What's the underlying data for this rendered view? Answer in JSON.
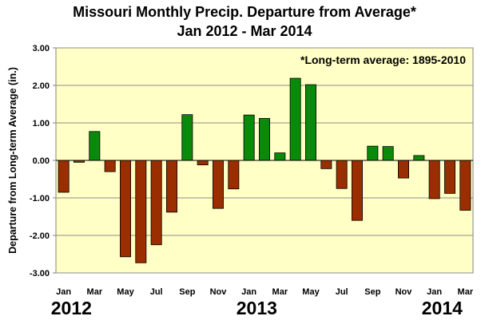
{
  "chart_data": {
    "type": "bar",
    "title": "Missouri Monthly Precip. Departure from Average*",
    "subtitle": "Jan 2012 - Mar 2014",
    "ylabel": "Departure from Long-term Average (in.)",
    "annotation": "*Long-term average: 1895-2010",
    "ylim": [
      -3.0,
      3.0
    ],
    "yticks": [
      "3.00",
      "2.00",
      "1.00",
      "0.00",
      "-1.00",
      "-2.00",
      "-3.00"
    ],
    "ytick_values": [
      3,
      2,
      1,
      0,
      -1,
      -2,
      -3
    ],
    "xtick_labels": [
      "Jan",
      "Mar",
      "May",
      "Jul",
      "Sep",
      "Nov",
      "Jan",
      "Mar",
      "May",
      "Jul",
      "Sep",
      "Nov",
      "Jan",
      "Mar"
    ],
    "xtick_positions": [
      0,
      2,
      4,
      6,
      8,
      10,
      12,
      14,
      16,
      18,
      20,
      22,
      24,
      26
    ],
    "year_labels": [
      "2012",
      "2013",
      "2014"
    ],
    "year_positions": [
      0.5,
      12.5,
      24.5
    ],
    "categories": [
      "Jan 2012",
      "Feb 2012",
      "Mar 2012",
      "Apr 2012",
      "May 2012",
      "Jun 2012",
      "Jul 2012",
      "Aug 2012",
      "Sep 2012",
      "Oct 2012",
      "Nov 2012",
      "Dec 2012",
      "Jan 2013",
      "Feb 2013",
      "Mar 2013",
      "Apr 2013",
      "May 2013",
      "Jun 2013",
      "Jul 2013",
      "Aug 2013",
      "Sep 2013",
      "Oct 2013",
      "Nov 2013",
      "Dec 2013",
      "Jan 2014",
      "Feb 2014",
      "Mar 2014"
    ],
    "values": [
      -0.85,
      -0.05,
      0.77,
      -0.3,
      -2.57,
      -2.73,
      -2.25,
      -1.38,
      1.22,
      -0.12,
      -1.28,
      -0.76,
      1.21,
      1.12,
      0.2,
      2.19,
      2.02,
      -0.22,
      -0.75,
      -1.6,
      0.38,
      0.37,
      -0.47,
      0.13,
      -1.02,
      -0.88,
      -1.33
    ],
    "positive_color": "#0a8a0a",
    "negative_color": "#9a2e00",
    "plot_background": "#ffffc6",
    "grid": true,
    "legend": "none"
  }
}
